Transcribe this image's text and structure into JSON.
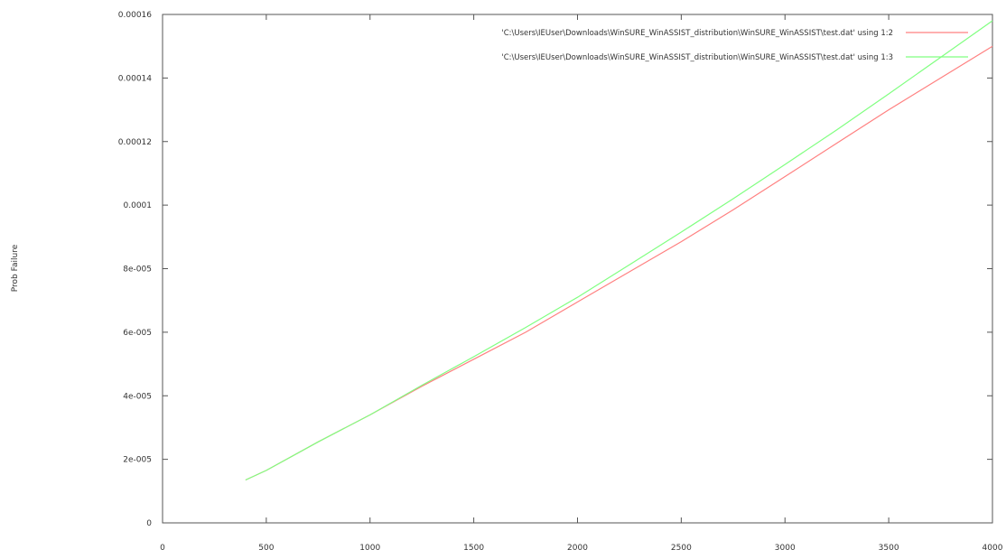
{
  "chart_data": {
    "type": "line",
    "title": "",
    "xlabel": "",
    "ylabel": "Prob Failure",
    "xlim": [
      0,
      4000
    ],
    "ylim": [
      0,
      0.00016
    ],
    "grid": false,
    "legend_position": "top-right",
    "x_ticks": [
      "0",
      "500",
      "1000",
      "1500",
      "2000",
      "2500",
      "3000",
      "3500",
      "4000"
    ],
    "x_tick_values": [
      0,
      500,
      1000,
      1500,
      2000,
      2500,
      3000,
      3500,
      4000
    ],
    "y_ticks": [
      "0",
      "2e-005",
      "4e-005",
      "6e-005",
      "8e-005",
      "0.0001",
      "0.00012",
      "0.00014",
      "0.00016"
    ],
    "y_tick_values": [
      0,
      2e-05,
      4e-05,
      6e-05,
      8e-05,
      0.0001,
      0.00012,
      0.00014,
      0.00016
    ],
    "series": [
      {
        "name": "'C:\\Users\\IEUser\\Downloads\\WinSURE_WinASSIST_distribution\\WinSURE_WinASSIST\\test.dat' using 1:2",
        "color": "#ff8080",
        "x": [
          400,
          500,
          750,
          1000,
          1250,
          1500,
          1750,
          2000,
          2250,
          2500,
          2750,
          3000,
          3250,
          3500,
          3750,
          4000
        ],
        "y": [
          1.35e-05,
          1.65e-05,
          2.55e-05,
          3.4e-05,
          4.3e-05,
          5.15e-05,
          6e-05,
          6.95e-05,
          7.9e-05,
          8.85e-05,
          9.85e-05,
          0.000109,
          0.0001195,
          0.00013,
          0.00014,
          0.00015
        ]
      },
      {
        "name": "'C:\\Users\\IEUser\\Downloads\\WinSURE_WinASSIST_distribution\\WinSURE_WinASSIST\\test.dat' using 1:3",
        "color": "#80ff80",
        "x": [
          400,
          500,
          750,
          1000,
          1250,
          1500,
          1750,
          2000,
          2250,
          2500,
          2750,
          3000,
          3250,
          3500,
          3750,
          4000
        ],
        "y": [
          1.35e-05,
          1.65e-05,
          2.55e-05,
          3.4e-05,
          4.33e-05,
          5.23e-05,
          6.15e-05,
          7.1e-05,
          8.12e-05,
          9.15e-05,
          0.000102,
          0.0001128,
          0.0001237,
          0.000135,
          0.0001465,
          0.000158
        ]
      }
    ]
  }
}
